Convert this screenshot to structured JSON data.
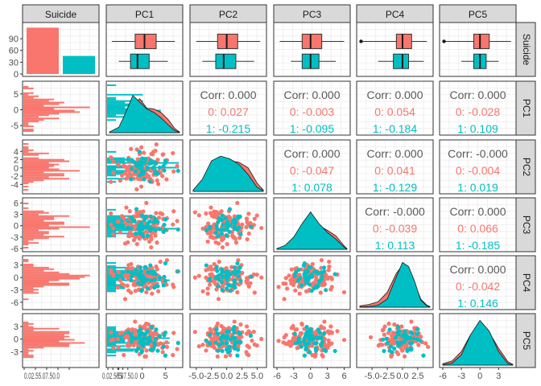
{
  "chart_data": {
    "type": "scatter-matrix",
    "variables": [
      "Suicide",
      "PC1",
      "PC2",
      "PC3",
      "PC4",
      "PC5"
    ],
    "groups": [
      "0",
      "1"
    ],
    "colors": {
      "0": "#F8766D",
      "1": "#00BFC4",
      "strip_bg": "#D9D9D9",
      "panel_border": "#333333",
      "grid": "#EBEBEB",
      "corr_total": "#595959"
    },
    "suicide_counts": {
      "0": 118,
      "1": 46
    },
    "suicide_ticks": [
      0,
      30,
      60,
      90
    ],
    "suicide_count_ticks_text": "0.02.55.07.50.0",
    "axis_ranges": {
      "PC1": [
        -7,
        8
      ],
      "PC2": [
        -5.5,
        6
      ],
      "PC3": [
        -6,
        6.5
      ],
      "PC4": [
        -7,
        4.5
      ],
      "PC5": [
        -6,
        5.3
      ]
    },
    "x_ticks": {
      "PC1": [
        "-5",
        "0",
        "5"
      ],
      "PC2": [
        "-5.0",
        "-2.5",
        "0.0",
        "2.5",
        "5.0"
      ],
      "PC3": [
        "-6",
        "-3",
        "0",
        "3",
        "6"
      ],
      "PC4": [
        "-5.0",
        "-2.5",
        "0.0",
        "2.5"
      ],
      "PC5": [
        "-6",
        "-3",
        "0",
        "3"
      ]
    },
    "y_ticks": {
      "PC1": [
        "5",
        "0",
        "-5"
      ],
      "PC2": [
        "4",
        "2",
        "0",
        "-2",
        "-4"
      ],
      "PC3": [
        "6",
        "3",
        "0",
        "-3",
        "-6"
      ],
      "PC4": [
        "3",
        "0",
        "-3",
        "-6"
      ],
      "PC5": [
        "3",
        "0",
        "-3"
      ]
    },
    "boxplots": {
      "PC1": {
        "0": [
          -6.5,
          -1.5,
          0.5,
          3,
          7
        ],
        "1": [
          -5,
          -2.5,
          -1,
          1.5,
          5.5
        ]
      },
      "PC2": {
        "0": [
          -5,
          -1.5,
          0,
          1.8,
          5.5
        ],
        "1": [
          -4,
          -1.8,
          -0.5,
          1.5,
          4.5
        ]
      },
      "PC3": {
        "0": [
          -5.5,
          -1.5,
          0,
          2,
          6
        ],
        "1": [
          -3.5,
          -1.5,
          0,
          1.5,
          4.5
        ]
      },
      "PC4": {
        "0": [
          -6.5,
          -1,
          0,
          1.5,
          4
        ],
        "1": [
          -4,
          -1.5,
          0,
          1,
          3.5
        ],
        "outliers_0": [
          -6.8
        ]
      },
      "PC5": {
        "0": [
          -6,
          -1,
          0,
          1.5,
          5
        ],
        "1": [
          -3,
          -1,
          0,
          1,
          3
        ],
        "outliers_0": [
          -5.8
        ]
      }
    },
    "correlations": {
      "PC1|PC2": {
        "total": "Corr: 0.000",
        "g0": "0: 0.027",
        "g1": "1: -0.215"
      },
      "PC1|PC3": {
        "total": "Corr: 0.000",
        "g0": "0: -0.003",
        "g1": "1: -0.095"
      },
      "PC1|PC4": {
        "total": "Corr: 0.000",
        "g0": "0: 0.054",
        "g1": "1: -0.184"
      },
      "PC1|PC5": {
        "total": "Corr: 0.000",
        "g0": "0: -0.028",
        "g1": "1: 0.109"
      },
      "PC2|PC3": {
        "total": "Corr: 0.000",
        "g0": "0: -0.047",
        "g1": "1: 0.078"
      },
      "PC2|PC4": {
        "total": "Corr: 0.000",
        "g0": "0: 0.041",
        "g1": "1: -0.129"
      },
      "PC2|PC5": {
        "total": "Corr: -0.000",
        "g0": "0: -0.004",
        "g1": "1: 0.019"
      },
      "PC3|PC4": {
        "total": "Corr: -0.000",
        "g0": "0: -0.039",
        "g1": "1: 0.113"
      },
      "PC3|PC5": {
        "total": "Corr: 0.000",
        "g0": "0: 0.066",
        "g1": "1: -0.185"
      },
      "PC4|PC5": {
        "total": "Corr: 0.000",
        "g0": "0: -0.042",
        "g1": "1: 0.146"
      }
    },
    "densities": {
      "PC1": {
        "x": [
          -7,
          -5,
          -3.5,
          -2,
          -0.5,
          1,
          2.5,
          4,
          5.5,
          7,
          8
        ],
        "g0": [
          0.01,
          0.05,
          0.2,
          0.42,
          0.5,
          0.36,
          0.35,
          0.3,
          0.2,
          0.06,
          0.01
        ],
        "g1": [
          0.01,
          0.08,
          0.3,
          0.55,
          0.45,
          0.35,
          0.3,
          0.22,
          0.12,
          0.03,
          0.005
        ]
      },
      "PC2": {
        "x": [
          -5.5,
          -4,
          -2.5,
          -1,
          0.5,
          2,
          3.5,
          5,
          6
        ],
        "g0": [
          0.02,
          0.15,
          0.4,
          0.5,
          0.45,
          0.43,
          0.35,
          0.12,
          0.02
        ],
        "g1": [
          0.02,
          0.18,
          0.45,
          0.52,
          0.48,
          0.4,
          0.25,
          0.06,
          0.01
        ]
      },
      "PC3": {
        "x": [
          -6,
          -4.5,
          -3,
          -1.5,
          0,
          1.5,
          3,
          4.5,
          6,
          6.5
        ],
        "g0": [
          0.01,
          0.05,
          0.15,
          0.35,
          0.55,
          0.35,
          0.28,
          0.2,
          0.05,
          0.01
        ],
        "g1": [
          0.01,
          0.06,
          0.18,
          0.38,
          0.55,
          0.38,
          0.25,
          0.15,
          0.03,
          0.005
        ]
      },
      "PC4": {
        "x": [
          -7,
          -5.5,
          -4,
          -2.5,
          -1,
          0,
          1,
          2,
          3,
          4,
          4.5
        ],
        "g0": [
          0.02,
          0.04,
          0.08,
          0.22,
          0.5,
          0.62,
          0.55,
          0.35,
          0.12,
          0.03,
          0.01
        ],
        "g1": [
          0.005,
          0.01,
          0.03,
          0.12,
          0.45,
          0.66,
          0.6,
          0.38,
          0.1,
          0.02,
          0.005
        ]
      },
      "PC5": {
        "x": [
          -6,
          -4.5,
          -3,
          -1.5,
          0,
          1.5,
          3,
          4.5,
          5.3
        ],
        "g0": [
          0.02,
          0.06,
          0.2,
          0.45,
          0.6,
          0.48,
          0.25,
          0.05,
          0.01
        ],
        "g1": [
          0.005,
          0.03,
          0.15,
          0.45,
          0.66,
          0.5,
          0.2,
          0.02,
          0.005
        ]
      }
    }
  }
}
